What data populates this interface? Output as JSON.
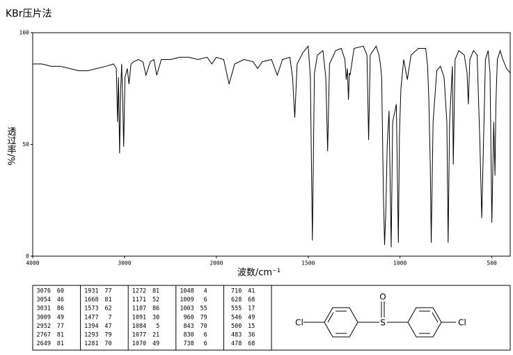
{
  "chart_data": {
    "type": "line",
    "title": "KBr压片法",
    "xlabel": "波数/cm⁻¹",
    "ylabel": "透过率/%",
    "xlim": [
      4000,
      400
    ],
    "xticks": [
      4000,
      3000,
      2000,
      1500,
      1000,
      500
    ],
    "xscale": {
      "break": 2000,
      "factor": 2
    },
    "ylim": [
      0,
      100
    ],
    "yticks": [
      0,
      50,
      100
    ],
    "color": "#000000",
    "x": [
      4000,
      3900,
      3800,
      3700,
      3600,
      3500,
      3400,
      3300,
      3200,
      3120,
      3090,
      3076,
      3065,
      3054,
      3042,
      3031,
      3020,
      3009,
      2995,
      2970,
      2952,
      2930,
      2900,
      2850,
      2800,
      2767,
      2720,
      2680,
      2649,
      2600,
      2500,
      2400,
      2300,
      2200,
      2100,
      2050,
      2000,
      1960,
      1931,
      1900,
      1850,
      1800,
      1775,
      1750,
      1700,
      1668,
      1640,
      1600,
      1585,
      1573,
      1560,
      1530,
      1500,
      1488,
      1477,
      1466,
      1450,
      1420,
      1404,
      1394,
      1384,
      1350,
      1320,
      1300,
      1293,
      1287,
      1281,
      1276,
      1272,
      1250,
      1200,
      1180,
      1171,
      1162,
      1130,
      1115,
      1107,
      1100,
      1091,
      1084,
      1077,
      1070,
      1060,
      1048,
      1040,
      1020,
      1009,
      1003,
      995,
      980,
      960,
      940,
      900,
      860,
      850,
      843,
      835,
      830,
      820,
      800,
      780,
      760,
      745,
      738,
      730,
      715,
      710,
      700,
      680,
      650,
      635,
      628,
      620,
      600,
      580,
      565,
      555,
      546,
      535,
      520,
      510,
      500,
      490,
      483,
      478,
      470,
      455,
      440,
      420,
      400
    ],
    "values": [
      86,
      86,
      85,
      85,
      84,
      83,
      83,
      84,
      85,
      86,
      84,
      60,
      80,
      46,
      75,
      86,
      70,
      49,
      80,
      84,
      77,
      86,
      87,
      88,
      87,
      81,
      87,
      88,
      81,
      88,
      88,
      89,
      89,
      88,
      89,
      86,
      89,
      88,
      77,
      86,
      88,
      87,
      84,
      87,
      88,
      81,
      88,
      89,
      80,
      62,
      86,
      91,
      94,
      80,
      7,
      82,
      90,
      92,
      80,
      47,
      86,
      92,
      93,
      88,
      79,
      84,
      70,
      82,
      81,
      93,
      94,
      90,
      52,
      90,
      94,
      90,
      86,
      80,
      30,
      5,
      21,
      49,
      65,
      4,
      60,
      68,
      6,
      55,
      75,
      88,
      79,
      90,
      93,
      93,
      85,
      70,
      40,
      6,
      60,
      83,
      85,
      80,
      60,
      6,
      60,
      85,
      41,
      88,
      92,
      90,
      82,
      68,
      88,
      92,
      90,
      50,
      17,
      49,
      88,
      92,
      82,
      15,
      60,
      36,
      68,
      88,
      92,
      88,
      84,
      82
    ],
    "peak_table": [
      [
        [
          3076,
          60
        ],
        [
          3054,
          46
        ],
        [
          3031,
          86
        ],
        [
          3009,
          49
        ],
        [
          2952,
          77
        ],
        [
          2767,
          81
        ],
        [
          2649,
          81
        ]
      ],
      [
        [
          1931,
          77
        ],
        [
          1668,
          81
        ],
        [
          1573,
          62
        ],
        [
          1477,
          7
        ],
        [
          1394,
          47
        ],
        [
          1293,
          79
        ],
        [
          1281,
          70
        ]
      ],
      [
        [
          1272,
          81
        ],
        [
          1171,
          52
        ],
        [
          1107,
          86
        ],
        [
          1091,
          30
        ],
        [
          1084,
          5
        ],
        [
          1077,
          21
        ],
        [
          1070,
          49
        ]
      ],
      [
        [
          1048,
          4
        ],
        [
          1009,
          6
        ],
        [
          1003,
          55
        ],
        [
          960,
          79
        ],
        [
          843,
          70
        ],
        [
          830,
          6
        ],
        [
          738,
          6
        ]
      ],
      [
        [
          710,
          41
        ],
        [
          628,
          68
        ],
        [
          555,
          17
        ],
        [
          546,
          49
        ],
        [
          500,
          15
        ],
        [
          483,
          36
        ],
        [
          478,
          68
        ]
      ]
    ],
    "structure": {
      "left_atom": "Cl",
      "center_atom": "S",
      "oxygen": "O",
      "right_atom": "Cl"
    }
  }
}
